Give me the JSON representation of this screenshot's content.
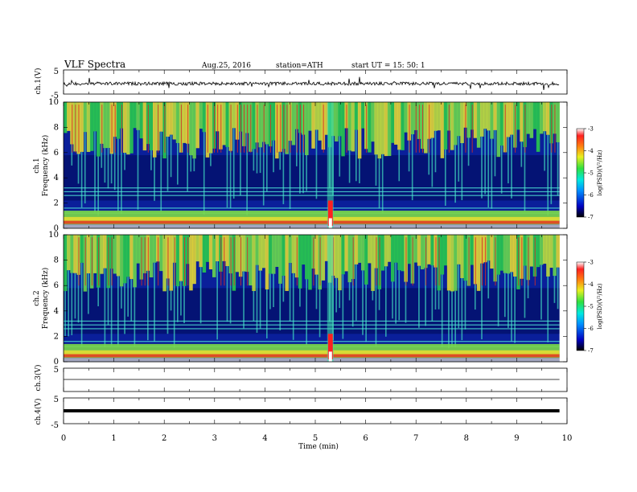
{
  "header": {
    "title": "VLF  Spectra",
    "date": "Aug.25, 2016",
    "station": "station=ATH",
    "start": "start  UT  =   15: 50: 1"
  },
  "chart_data": {
    "type": "heatmap",
    "xlabel": "Time  (min)",
    "xlim": [
      0,
      10
    ],
    "x_ticks": [
      "0",
      "1",
      "2",
      "3",
      "4",
      "5",
      "6",
      "7",
      "8",
      "9",
      "10"
    ],
    "panels": [
      {
        "id": "ch1-wave",
        "ylabel": "ch.1(V)",
        "ylim": [
          -5,
          5
        ],
        "y_ticks": [
          "5",
          "-5"
        ]
      },
      {
        "id": "ch1-spec",
        "ylabel": "ch.1",
        "ylabel2": "Frequency  (kHz)",
        "ylim": [
          0,
          10
        ],
        "y_ticks": [
          "0",
          "2",
          "4",
          "6",
          "8",
          "10"
        ]
      },
      {
        "id": "ch2-spec",
        "ylabel": "ch.2",
        "ylabel2": "Frequency  (kHz)",
        "ylim": [
          0,
          10
        ],
        "y_ticks": [
          "0",
          "2",
          "4",
          "6",
          "8",
          "10"
        ]
      },
      {
        "id": "ch3-wave",
        "ylabel": "ch.3(V)",
        "ylim": [
          -5,
          5
        ],
        "y_ticks": [
          "5"
        ]
      },
      {
        "id": "ch4-wave",
        "ylabel": "ch.4(V)",
        "ylim": [
          -5,
          5
        ],
        "y_ticks": [
          "5",
          "-5"
        ]
      }
    ],
    "colorbar": {
      "label": "log(PSD)(V²/Hz)",
      "ticks": [
        "-3",
        "-4",
        "-5",
        "-6",
        "-7"
      ],
      "range": [
        -7,
        -3
      ]
    },
    "colors": {
      "background": "#0a1f9a",
      "deep": "#000a55",
      "noise": [
        "#2ad24a",
        "#6ee04a",
        "#c8e838",
        "#f0e030",
        "#ff9020",
        "#e63020"
      ],
      "event": "#ff2020"
    }
  }
}
